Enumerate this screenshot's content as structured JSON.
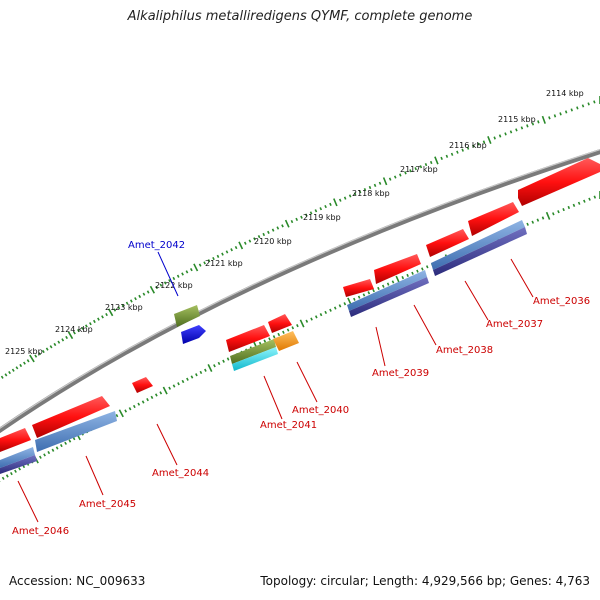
{
  "title": "Alkaliphilus metalliredigens QYMF, complete genome",
  "footer": {
    "accession": "Accession: NC_009633",
    "stats": "Topology: circular; Length: 4,929,566 bp; Genes: 4,763"
  },
  "colors": {
    "backbone": "#7a7a7a",
    "cds": "#ff1a1a",
    "cog_blue": "#4f7fbf",
    "cog_purple": "#3f3f8f",
    "cog_green": "#6f8f2f",
    "cog_cyan": "#1fd6e6",
    "cog_orange": "#ff9a10",
    "cog_deepblue": "#0000ee",
    "tick": "#2a8a2a"
  },
  "ticks": [
    "2114 kbp",
    "2115 kbp",
    "2116 kbp",
    "2117 kbp",
    "2118 kbp",
    "2119 kbp",
    "2120 kbp",
    "2121 kbp",
    "2122 kbp",
    "2123 kbp",
    "2124 kbp",
    "2125 kbp"
  ],
  "gene_labels": [
    {
      "text": "Amet_2036",
      "color": "#cc0000"
    },
    {
      "text": "Amet_2037",
      "color": "#cc0000"
    },
    {
      "text": "Amet_2038",
      "color": "#cc0000"
    },
    {
      "text": "Amet_2039",
      "color": "#cc0000"
    },
    {
      "text": "Amet_2040",
      "color": "#cc0000"
    },
    {
      "text": "Amet_2041",
      "color": "#cc0000"
    },
    {
      "text": "Amet_2042",
      "color": "#0000cc"
    },
    {
      "text": "Amet_2044",
      "color": "#cc0000"
    },
    {
      "text": "Amet_2045",
      "color": "#cc0000"
    },
    {
      "text": "Amet_2046",
      "color": "#cc0000"
    }
  ]
}
